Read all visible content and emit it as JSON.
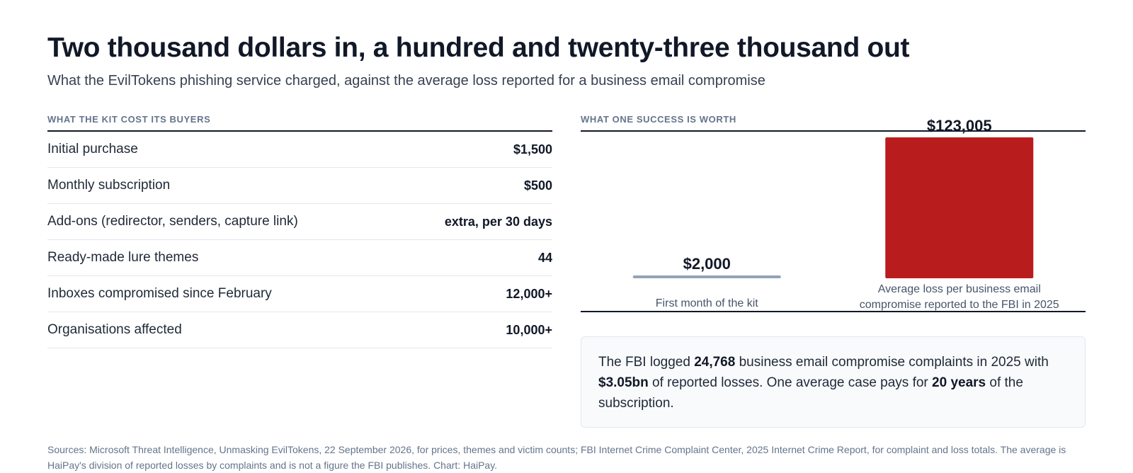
{
  "header": {
    "title": "Two thousand dollars in, a hundred and twenty-three thousand out",
    "subtitle": "What the EvilTokens phishing service charged, against the average loss reported for a business email compromise"
  },
  "kit_costs": {
    "section_label": "WHAT THE KIT COST ITS BUYERS",
    "rows": [
      {
        "label": "Initial purchase",
        "value": "$1,500"
      },
      {
        "label": "Monthly subscription",
        "value": "$500"
      },
      {
        "label": "Add-ons (redirector, senders, capture link)",
        "value": "extra, per 30 days"
      },
      {
        "label": "Ready-made lure themes",
        "value": "44"
      },
      {
        "label": "Inboxes compromised since February",
        "value": "12,000+"
      },
      {
        "label": "Organisations affected",
        "value": "10,000+"
      }
    ]
  },
  "success": {
    "section_label": "WHAT ONE SUCCESS IS WORTH"
  },
  "chart_data": {
    "type": "bar",
    "categories": [
      "First month of the kit",
      "Average loss per business email compromise reported to the FBI in 2025"
    ],
    "category_lines": [
      [
        "First month of the kit"
      ],
      [
        "Average loss per business email",
        "compromise reported to the FBI in 2025"
      ]
    ],
    "values": [
      2000,
      123005
    ],
    "value_labels": [
      "$2,000",
      "$123,005"
    ],
    "colors": [
      "#94a3b8",
      "#b91c1c"
    ],
    "ylim": [
      0,
      123005
    ],
    "title": "WHAT ONE SUCCESS IS WORTH",
    "xlabel": "",
    "ylabel": "",
    "grid": false
  },
  "note": {
    "parts": [
      {
        "text": "The FBI logged ",
        "bold": false
      },
      {
        "text": "24,768",
        "bold": true
      },
      {
        "text": " business email compromise complaints in 2025 with ",
        "bold": false
      },
      {
        "text": "$3.05bn",
        "bold": true
      },
      {
        "text": " of reported losses. One average case pays for ",
        "bold": false
      },
      {
        "text": "20 years",
        "bold": true
      },
      {
        "text": " of the subscription.",
        "bold": false
      }
    ]
  },
  "footer": {
    "sources": "Sources: Microsoft Threat Intelligence, Unmasking EvilTokens, 22 September 2026, for prices, themes and victim counts; FBI Internet Crime Complaint Center, 2025 Internet Crime Report, for complaint and loss totals. The average is HaiPay's division of reported losses by complaints and is not a figure the FBI publishes. Chart: HaiPay."
  }
}
